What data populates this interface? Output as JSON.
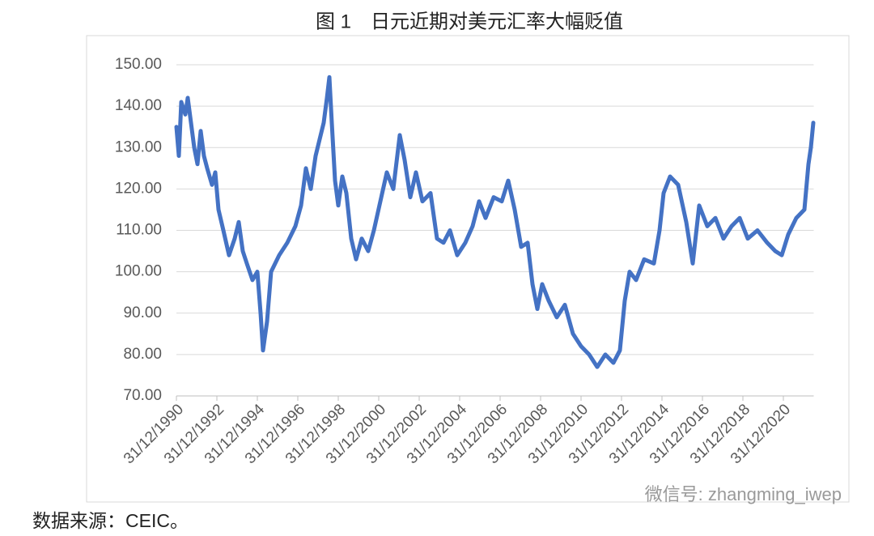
{
  "title": "图 1　日元近期对美元汇率大幅贬值",
  "source": "数据来源：CEIC。",
  "watermark": "微信号: zhangming_iwep",
  "chart_data": {
    "type": "line",
    "color": "#4472c4",
    "grid": true,
    "xlim": [
      1991,
      2022.5
    ],
    "ylim": [
      70,
      150
    ],
    "yticks": [
      {
        "value": 70,
        "label": "70.00"
      },
      {
        "value": 80,
        "label": "80.00"
      },
      {
        "value": 90,
        "label": "90.00"
      },
      {
        "value": 100,
        "label": "100.00"
      },
      {
        "value": 110,
        "label": "110.00"
      },
      {
        "value": 120,
        "label": "120.00"
      },
      {
        "value": 130,
        "label": "130.00"
      },
      {
        "value": 140,
        "label": "140.00"
      },
      {
        "value": 150,
        "label": "150.00"
      }
    ],
    "xticks": [
      {
        "value": 1991,
        "label": "31/12/1990"
      },
      {
        "value": 1993,
        "label": "31/12/1992"
      },
      {
        "value": 1995,
        "label": "31/12/1994"
      },
      {
        "value": 1997,
        "label": "31/12/1996"
      },
      {
        "value": 1999,
        "label": "31/12/1998"
      },
      {
        "value": 2001,
        "label": "31/12/2000"
      },
      {
        "value": 2003,
        "label": "31/12/2002"
      },
      {
        "value": 2005,
        "label": "31/12/2004"
      },
      {
        "value": 2007,
        "label": "31/12/2006"
      },
      {
        "value": 2009,
        "label": "31/12/2008"
      },
      {
        "value": 2011,
        "label": "31/12/2010"
      },
      {
        "value": 2013,
        "label": "31/12/2012"
      },
      {
        "value": 2015,
        "label": "31/12/2014"
      },
      {
        "value": 2017,
        "label": "31/12/2016"
      },
      {
        "value": 2019,
        "label": "31/12/2018"
      },
      {
        "value": 2021,
        "label": "31/12/2020"
      }
    ],
    "x": [
      1991.0,
      1991.12,
      1991.24,
      1991.44,
      1991.56,
      1991.72,
      1991.88,
      1992.04,
      1992.2,
      1992.36,
      1992.52,
      1992.76,
      1992.92,
      1993.08,
      1993.32,
      1993.6,
      1993.88,
      1994.08,
      1994.28,
      1994.48,
      1994.76,
      1995.0,
      1995.16,
      1995.28,
      1995.48,
      1995.68,
      1996.08,
      1996.48,
      1996.88,
      1997.16,
      1997.4,
      1997.64,
      1997.88,
      1998.08,
      1998.28,
      1998.44,
      1998.56,
      1998.68,
      1998.84,
      1999.0,
      1999.2,
      1999.4,
      1999.64,
      1999.88,
      2000.16,
      2000.48,
      2000.76,
      2001.08,
      2001.4,
      2001.72,
      2002.04,
      2002.28,
      2002.56,
      2002.84,
      2003.16,
      2003.56,
      2003.88,
      2004.2,
      2004.52,
      2004.88,
      2005.28,
      2005.64,
      2005.96,
      2006.28,
      2006.68,
      2007.08,
      2007.4,
      2007.72,
      2008.04,
      2008.36,
      2008.6,
      2008.84,
      2009.08,
      2009.4,
      2009.8,
      2010.2,
      2010.6,
      2011.0,
      2011.4,
      2011.8,
      2012.2,
      2012.6,
      2012.92,
      2013.16,
      2013.4,
      2013.72,
      2014.12,
      2014.6,
      2014.88,
      2015.08,
      2015.4,
      2015.8,
      2016.2,
      2016.52,
      2016.84,
      2017.24,
      2017.64,
      2018.04,
      2018.44,
      2018.84,
      2019.24,
      2019.72,
      2020.2,
      2020.6,
      2020.92,
      2021.24,
      2021.64,
      2022.04,
      2022.24,
      2022.36,
      2022.48
    ],
    "values": [
      135,
      128,
      141,
      138,
      142,
      136,
      130,
      126,
      134,
      128,
      125,
      121,
      124,
      115,
      110,
      104,
      108,
      112,
      105,
      102,
      98,
      100,
      90,
      81,
      88,
      100,
      104,
      107,
      111,
      116,
      125,
      120,
      128,
      132,
      136,
      142,
      147,
      136,
      122,
      116,
      123,
      119,
      108,
      103,
      108,
      105,
      110,
      117,
      124,
      120,
      133,
      127,
      118,
      124,
      117,
      119,
      108,
      107,
      110,
      104,
      107,
      111,
      117,
      113,
      118,
      117,
      122,
      115,
      106,
      107,
      97,
      91,
      97,
      93,
      89,
      92,
      85,
      82,
      80,
      77,
      80,
      78,
      81,
      93,
      100,
      98,
      103,
      102,
      110,
      119,
      123,
      121,
      112,
      102,
      116,
      111,
      113,
      108,
      111,
      113,
      108,
      110,
      107,
      105,
      104,
      109,
      113,
      115,
      126,
      130,
      136
    ]
  }
}
